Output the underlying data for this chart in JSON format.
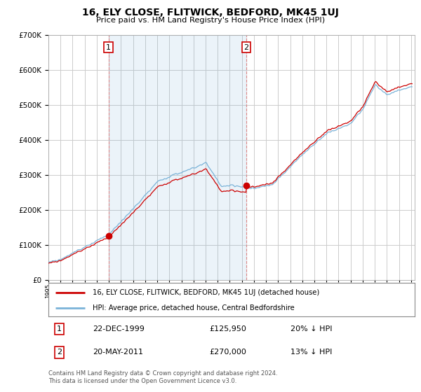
{
  "title": "16, ELY CLOSE, FLITWICK, BEDFORD, MK45 1UJ",
  "subtitle": "Price paid vs. HM Land Registry's House Price Index (HPI)",
  "legend_label_red": "16, ELY CLOSE, FLITWICK, BEDFORD, MK45 1UJ (detached house)",
  "legend_label_blue": "HPI: Average price, detached house, Central Bedfordshire",
  "transaction1_date": "22-DEC-1999",
  "transaction1_price": "£125,950",
  "transaction1_hpi": "20% ↓ HPI",
  "transaction1_year": 1999.97,
  "transaction1_value": 125950,
  "transaction2_date": "20-MAY-2011",
  "transaction2_price": "£270,000",
  "transaction2_hpi": "13% ↓ HPI",
  "transaction2_year": 2011.37,
  "transaction2_value": 270000,
  "footer": "Contains HM Land Registry data © Crown copyright and database right 2024.\nThis data is licensed under the Open Government Licence v3.0.",
  "red_color": "#cc0000",
  "blue_color": "#7ab3d8",
  "shade_color": "#ddeeff",
  "background_color": "#ffffff",
  "grid_color": "#cccccc",
  "ylim_max": 700000,
  "xlim_start": 1995.3,
  "xlim_end": 2025.3
}
